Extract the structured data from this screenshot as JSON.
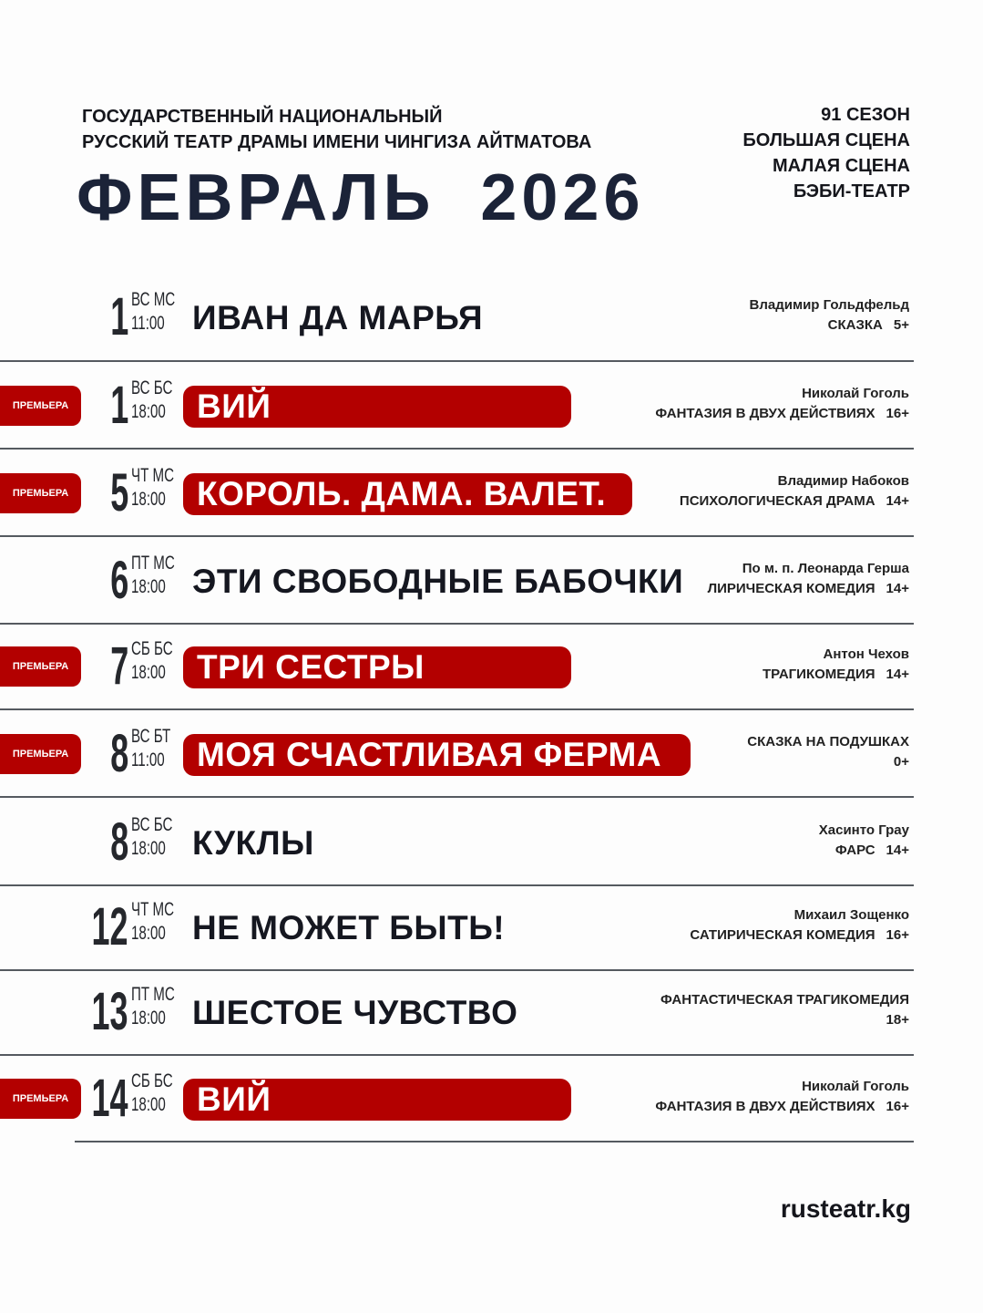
{
  "header": {
    "org_line1": "ГОСУДАРСТВЕННЫЙ НАЦИОНАЛЬНЫЙ",
    "org_line2": "РУССКИЙ ТЕАТР ДРАМЫ ИМЕНИ ЧИНГИЗА АЙТМАТОВА",
    "month": "ФЕВРАЛЬ  2026",
    "season": "91 СЕЗОН",
    "stage1": "БОЛЬШАЯ СЦЕНА",
    "stage2": "МАЛАЯ СЦЕНА",
    "stage3": "БЭБИ-ТЕАТР"
  },
  "colors": {
    "accent": "#b30000",
    "title": "#1b2338"
  },
  "premiere_label": "ПРЕМЬЕРА",
  "events": [
    {
      "day": "1",
      "weekday": "ВС",
      "venue": "МС",
      "time": "11:00",
      "title": "ИВАН ДА МАРЬЯ",
      "premiere": false,
      "author": "Владимир Гольдфельд",
      "genre": "СКАЗКА",
      "age": "5+"
    },
    {
      "day": "1",
      "weekday": "ВС",
      "venue": "БС",
      "time": "18:00",
      "title": "ВИЙ",
      "premiere": true,
      "author": "Николай Гоголь",
      "genre": "ФАНТАЗИЯ В ДВУХ ДЕЙСТВИЯХ",
      "age": "16+"
    },
    {
      "day": "5",
      "weekday": "ЧТ",
      "venue": "МС",
      "time": "18:00",
      "title": "КОРОЛЬ. ДАМА. ВАЛЕТ.",
      "premiere": true,
      "author": "Владимир Набоков",
      "genre": "ПСИХОЛОГИЧЕСКАЯ ДРАМА",
      "age": "14+"
    },
    {
      "day": "6",
      "weekday": "ПТ",
      "venue": "МС",
      "time": "18:00",
      "title": "ЭТИ СВОБОДНЫЕ БАБОЧКИ",
      "premiere": false,
      "author": "По м. п. Леонарда Герша",
      "genre": "ЛИРИЧЕСКАЯ КОМЕДИЯ",
      "age": "14+"
    },
    {
      "day": "7",
      "weekday": "СБ",
      "venue": "БС",
      "time": "18:00",
      "title": "ТРИ СЕСТРЫ",
      "premiere": true,
      "author": "Антон Чехов",
      "genre": "ТРАГИКОМЕДИЯ",
      "age": "14+"
    },
    {
      "day": "8",
      "weekday": "ВС",
      "venue": "БТ",
      "time": "11:00",
      "title": "МОЯ СЧАСТЛИВАЯ ФЕРМА",
      "premiere": true,
      "author": "СКАЗКА НА ПОДУШКАХ",
      "genre": "",
      "age": "0+"
    },
    {
      "day": "8",
      "weekday": "ВС",
      "venue": "БС",
      "time": "18:00",
      "title": "КУКЛЫ",
      "premiere": false,
      "author": "Хасинто Грау",
      "genre": "ФАРС",
      "age": "14+"
    },
    {
      "day": "12",
      "weekday": "ЧТ",
      "venue": "МС",
      "time": "18:00",
      "title": "НЕ МОЖЕТ БЫТЬ!",
      "premiere": false,
      "author": "Михаил Зощенко",
      "genre": "САТИРИЧЕСКАЯ КОМЕДИЯ",
      "age": "16+"
    },
    {
      "day": "13",
      "weekday": "ПТ",
      "venue": "МС",
      "time": "18:00",
      "title": "ШЕСТОЕ ЧУВСТВО",
      "premiere": false,
      "author": "ФАНТАСТИЧЕСКАЯ ТРАГИКОМЕДИЯ",
      "genre": "",
      "age": "18+"
    },
    {
      "day": "14",
      "weekday": "СБ",
      "venue": "БС",
      "time": "18:00",
      "title": "ВИЙ",
      "premiere": true,
      "author": "Николай Гоголь",
      "genre": "ФАНТАЗИЯ В ДВУХ ДЕЙСТВИЯХ",
      "age": "16+"
    }
  ],
  "footer": {
    "website": "rusteatr.kg"
  }
}
